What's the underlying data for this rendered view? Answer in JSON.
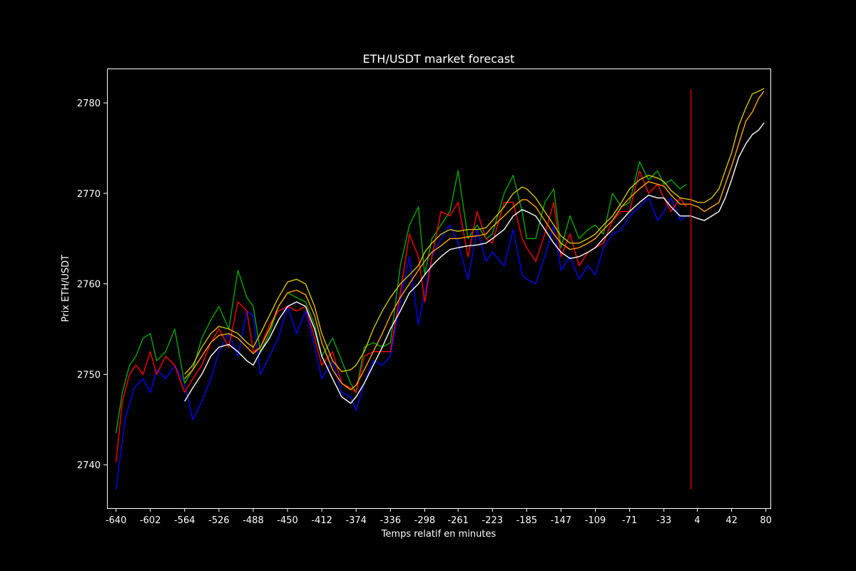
{
  "chart_data": {
    "type": "line",
    "title": "ETH/USDT market forecast",
    "xlabel": "Temps relatif en minutes",
    "ylabel": "Prix ETH/USDT",
    "xlim": [
      -650,
      85
    ],
    "ylim": [
      2735.2,
      2783.8
    ],
    "x_tick_values": [
      -640,
      -602,
      -564,
      -526,
      -488,
      -450,
      -412,
      -374,
      -336,
      -298,
      -261,
      -223,
      -185,
      -147,
      -109,
      -71,
      -33,
      4,
      42,
      80
    ],
    "x_tick_labels": [
      "-640",
      "-602",
      "-564",
      "-526",
      "-488",
      "-450",
      "-412",
      "-374",
      "-336",
      "-298",
      "-261",
      "-223",
      "-185",
      "-147",
      "-109",
      "-71",
      "-33",
      "4",
      "42",
      "80"
    ],
    "y_tick_values": [
      2740,
      2750,
      2760,
      2770,
      2780
    ],
    "y_tick_labels": [
      "2740",
      "2750",
      "2760",
      "2770",
      "2780"
    ],
    "grid": false,
    "background": "#000000",
    "vline": {
      "x": -3,
      "y_range": [
        2737.3,
        2781.5
      ],
      "color": "#ff0000"
    },
    "series": [
      {
        "color": "#0000ff",
        "x": [
          -640,
          -630,
          -620,
          -610,
          -602,
          -595,
          -585,
          -575,
          -564,
          -555,
          -545,
          -535,
          -526,
          -515,
          -505,
          -495,
          -488,
          -480,
          -470,
          -460,
          -450,
          -440,
          -430,
          -420,
          -412,
          -400,
          -390,
          -380,
          -374,
          -365,
          -355,
          -345,
          -336,
          -325,
          -315,
          -305,
          -298,
          -290,
          -280,
          -270,
          -261,
          -250,
          -240,
          -230,
          -223,
          -210,
          -200,
          -190,
          -185,
          -175,
          -165,
          -155,
          -147,
          -137,
          -127,
          -117,
          -109,
          -100,
          -90,
          -80,
          -71,
          -60,
          -50,
          -40,
          -33,
          -25,
          -15,
          -8
        ],
        "y": [
          2737.3,
          2745.0,
          2748.5,
          2749.5,
          2748.0,
          2750.5,
          2749.5,
          2751.0,
          2749.0,
          2745.0,
          2747.0,
          2749.5,
          2752.5,
          2754.5,
          2752.0,
          2757.0,
          2756.5,
          2750.0,
          2752.0,
          2754.0,
          2757.5,
          2754.5,
          2757.0,
          2753.0,
          2749.5,
          2751.5,
          2748.0,
          2747.5,
          2746.0,
          2749.0,
          2751.5,
          2751.0,
          2752.0,
          2758.0,
          2763.0,
          2755.5,
          2759.0,
          2763.0,
          2765.0,
          2766.5,
          2764.5,
          2760.5,
          2766.0,
          2762.5,
          2763.5,
          2762.0,
          2766.0,
          2761.0,
          2760.5,
          2760.0,
          2763.0,
          2766.5,
          2761.5,
          2763.0,
          2760.5,
          2762.0,
          2761.0,
          2764.0,
          2765.5,
          2766.0,
          2767.5,
          2768.5,
          2769.5,
          2767.0,
          2768.0,
          2769.5,
          2767.0,
          2767.5
        ]
      },
      {
        "color": "#00aa00",
        "x": [
          -640,
          -633,
          -625,
          -618,
          -610,
          -602,
          -595,
          -585,
          -575,
          -564,
          -555,
          -545,
          -535,
          -526,
          -515,
          -505,
          -495,
          -488,
          -480,
          -470,
          -460,
          -450,
          -440,
          -430,
          -420,
          -412,
          -400,
          -390,
          -380,
          -374,
          -365,
          -355,
          -345,
          -336,
          -325,
          -315,
          -305,
          -298,
          -290,
          -280,
          -270,
          -261,
          -250,
          -240,
          -230,
          -223,
          -210,
          -200,
          -190,
          -185,
          -175,
          -165,
          -155,
          -147,
          -137,
          -127,
          -117,
          -109,
          -100,
          -90,
          -80,
          -71,
          -60,
          -50,
          -40,
          -33,
          -25,
          -15,
          -8
        ],
        "y": [
          2743.5,
          2748.0,
          2751.0,
          2752.0,
          2754.0,
          2754.5,
          2751.5,
          2752.5,
          2755.0,
          2749.0,
          2750.5,
          2754.0,
          2756.0,
          2757.5,
          2755.0,
          2761.5,
          2758.5,
          2757.5,
          2752.5,
          2754.5,
          2757.5,
          2759.0,
          2758.5,
          2758.0,
          2755.5,
          2752.0,
          2754.0,
          2751.5,
          2749.0,
          2748.0,
          2753.0,
          2753.5,
          2753.0,
          2753.5,
          2762.0,
          2766.5,
          2768.5,
          2761.0,
          2765.0,
          2766.5,
          2768.0,
          2772.5,
          2765.0,
          2766.5,
          2765.0,
          2765.5,
          2770.0,
          2772.0,
          2768.0,
          2765.0,
          2765.0,
          2769.0,
          2770.5,
          2764.0,
          2767.5,
          2765.0,
          2766.0,
          2766.5,
          2765.5,
          2770.0,
          2768.5,
          2769.0,
          2773.5,
          2771.5,
          2772.5,
          2771.0,
          2771.5,
          2770.5,
          2771.0
        ]
      },
      {
        "color": "#ff0000",
        "x": [
          -640,
          -633,
          -625,
          -618,
          -610,
          -602,
          -595,
          -585,
          -575,
          -564,
          -555,
          -545,
          -535,
          -526,
          -515,
          -505,
          -495,
          -488,
          -480,
          -470,
          -460,
          -450,
          -440,
          -430,
          -420,
          -412,
          -400,
          -390,
          -380,
          -374,
          -365,
          -355,
          -345,
          -336,
          -325,
          -315,
          -305,
          -298,
          -290,
          -280,
          -270,
          -261,
          -250,
          -240,
          -230,
          -223,
          -210,
          -200,
          -190,
          -185,
          -175,
          -165,
          -155,
          -147,
          -137,
          -127,
          -117,
          -109,
          -100,
          -90,
          -80,
          -71,
          -60,
          -50,
          -40,
          -33,
          -25,
          -15,
          -8
        ],
        "y": [
          2740.3,
          2747.0,
          2750.0,
          2751.0,
          2750.0,
          2752.5,
          2750.0,
          2752.0,
          2751.0,
          2748.0,
          2749.5,
          2751.0,
          2753.5,
          2755.0,
          2753.0,
          2758.0,
          2757.0,
          2752.5,
          2753.0,
          2755.5,
          2757.0,
          2757.5,
          2757.0,
          2757.5,
          2754.0,
          2751.0,
          2752.5,
          2749.0,
          2748.5,
          2748.0,
          2752.0,
          2752.5,
          2752.5,
          2752.5,
          2759.0,
          2765.5,
          2763.0,
          2758.0,
          2763.0,
          2768.0,
          2767.5,
          2769.0,
          2763.0,
          2768.0,
          2765.0,
          2764.5,
          2769.0,
          2769.0,
          2765.0,
          2764.0,
          2762.5,
          2765.5,
          2769.0,
          2763.0,
          2765.5,
          2762.0,
          2763.5,
          2764.0,
          2764.5,
          2767.0,
          2768.0,
          2768.0,
          2772.5,
          2770.0,
          2771.0,
          2769.5,
          2768.0,
          2769.5,
          2768.5
        ]
      },
      {
        "color": "#ffffff",
        "x": [
          -564,
          -555,
          -545,
          -535,
          -526,
          -515,
          -505,
          -495,
          -488,
          -480,
          -470,
          -460,
          -450,
          -440,
          -430,
          -420,
          -412,
          -400,
          -390,
          -380,
          -374,
          -365,
          -355,
          -345,
          -336,
          -325,
          -315,
          -305,
          -298,
          -290,
          -280,
          -270,
          -261,
          -250,
          -240,
          -230,
          -223,
          -210,
          -200,
          -190,
          -185,
          -175,
          -165,
          -155,
          -147,
          -137,
          -127,
          -117,
          -109,
          -100,
          -90,
          -80,
          -71,
          -60,
          -50,
          -40,
          -33,
          -25,
          -15,
          -3,
          5,
          12,
          20,
          28,
          35,
          42,
          50,
          58,
          65,
          72,
          78
        ],
        "y": [
          2747.0,
          2748.5,
          2750.0,
          2752.0,
          2753.0,
          2753.3,
          2752.5,
          2751.5,
          2751.0,
          2752.5,
          2754.0,
          2756.0,
          2757.5,
          2758.0,
          2757.5,
          2755.0,
          2752.0,
          2749.5,
          2747.5,
          2746.8,
          2747.5,
          2749.0,
          2751.0,
          2753.0,
          2755.0,
          2757.0,
          2759.0,
          2760.0,
          2761.0,
          2762.0,
          2763.0,
          2763.8,
          2764.0,
          2764.2,
          2764.3,
          2764.5,
          2765.0,
          2766.0,
          2767.5,
          2768.2,
          2768.0,
          2767.5,
          2766.0,
          2764.5,
          2763.5,
          2762.8,
          2763.0,
          2763.5,
          2764.0,
          2765.0,
          2766.0,
          2767.0,
          2768.0,
          2769.0,
          2769.8,
          2769.5,
          2769.5,
          2768.5,
          2767.5,
          2767.5,
          2767.2,
          2767.0,
          2767.5,
          2768.0,
          2769.5,
          2771.5,
          2774.0,
          2775.5,
          2776.5,
          2777.0,
          2777.8
        ]
      },
      {
        "color": "#ffa500",
        "x": [
          -564,
          -555,
          -545,
          -535,
          -526,
          -515,
          -505,
          -495,
          -488,
          -480,
          -470,
          -460,
          -450,
          -440,
          -430,
          -420,
          -412,
          -400,
          -390,
          -380,
          -374,
          -365,
          -355,
          -345,
          -336,
          -325,
          -315,
          -305,
          -298,
          -290,
          -280,
          -270,
          -261,
          -250,
          -240,
          -230,
          -223,
          -210,
          -200,
          -190,
          -185,
          -175,
          -165,
          -155,
          -147,
          -137,
          -127,
          -117,
          -109,
          -100,
          -90,
          -80,
          -71,
          -60,
          -50,
          -40,
          -33,
          -25,
          -15,
          -3,
          5,
          12,
          20,
          28,
          35,
          42,
          50,
          58,
          65,
          72,
          78
        ],
        "y": [
          2749.5,
          2750.5,
          2752.0,
          2753.5,
          2754.3,
          2754.5,
          2754.0,
          2753.0,
          2752.3,
          2753.0,
          2755.0,
          2757.5,
          2759.0,
          2759.3,
          2758.8,
          2756.5,
          2753.5,
          2750.5,
          2749.0,
          2748.3,
          2748.8,
          2750.5,
          2752.5,
          2754.5,
          2756.5,
          2758.5,
          2760.0,
          2761.5,
          2762.5,
          2763.5,
          2764.2,
          2765.0,
          2765.0,
          2765.2,
          2765.3,
          2765.5,
          2766.3,
          2767.5,
          2768.5,
          2769.3,
          2769.3,
          2768.5,
          2767.0,
          2765.5,
          2764.5,
          2763.8,
          2764.0,
          2764.5,
          2765.0,
          2766.0,
          2767.0,
          2768.5,
          2769.5,
          2770.5,
          2771.3,
          2771.0,
          2770.8,
          2769.8,
          2768.8,
          2768.8,
          2768.5,
          2768.0,
          2768.5,
          2769.0,
          2771.0,
          2773.0,
          2775.5,
          2778.0,
          2779.0,
          2780.5,
          2781.3
        ]
      },
      {
        "color": "#d4c400",
        "x": [
          -564,
          -555,
          -545,
          -535,
          -526,
          -515,
          -505,
          -495,
          -488,
          -480,
          -470,
          -460,
          -450,
          -440,
          -430,
          -420,
          -412,
          -400,
          -390,
          -380,
          -374,
          -365,
          -355,
          -345,
          -336,
          -325,
          -315,
          -305,
          -298,
          -290,
          -280,
          -270,
          -261,
          -250,
          -240,
          -230,
          -223,
          -210,
          -200,
          -190,
          -185,
          -175,
          -165,
          -155,
          -147,
          -137,
          -127,
          -117,
          -109,
          -100,
          -90,
          -80,
          -71,
          -60,
          -50,
          -40,
          -33,
          -25,
          -15,
          -3,
          5,
          12,
          20,
          28,
          35,
          42,
          50,
          58,
          65,
          72,
          78
        ],
        "y": [
          2750.0,
          2751.0,
          2753.0,
          2754.5,
          2755.3,
          2755.0,
          2754.5,
          2753.5,
          2753.0,
          2754.5,
          2756.5,
          2758.5,
          2760.2,
          2760.5,
          2760.0,
          2757.5,
          2754.5,
          2751.5,
          2750.3,
          2750.5,
          2751.0,
          2752.5,
          2755.0,
          2757.0,
          2758.5,
          2760.0,
          2761.0,
          2762.0,
          2763.5,
          2764.5,
          2765.5,
          2766.0,
          2765.8,
          2766.0,
          2766.0,
          2766.2,
          2767.0,
          2768.5,
          2770.0,
          2770.7,
          2770.5,
          2769.5,
          2768.0,
          2766.5,
          2765.3,
          2764.5,
          2764.5,
          2765.0,
          2765.5,
          2766.5,
          2767.5,
          2769.0,
          2770.5,
          2771.5,
          2772.0,
          2771.7,
          2771.3,
          2770.3,
          2769.5,
          2769.3,
          2769.0,
          2769.0,
          2769.5,
          2770.5,
          2772.5,
          2774.5,
          2777.5,
          2779.5,
          2781.0,
          2781.3,
          2781.6
        ]
      }
    ]
  }
}
